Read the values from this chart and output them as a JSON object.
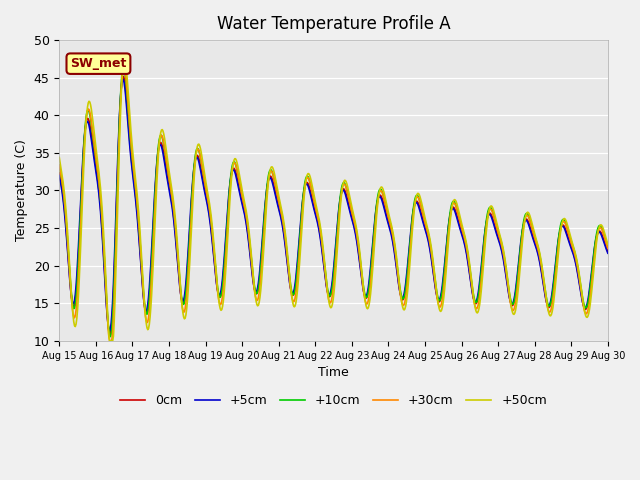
{
  "title": "Water Temperature Profile A",
  "xlabel": "Time",
  "ylabel": "Temperature (C)",
  "ylim": [
    10,
    50
  ],
  "xlim": [
    0,
    15
  ],
  "x_tick_positions": [
    0,
    1,
    2,
    3,
    4,
    5,
    6,
    7,
    8,
    9,
    10,
    11,
    12,
    13,
    14,
    15
  ],
  "x_tick_labels": [
    "Aug 15",
    "Aug 16",
    "Aug 17",
    "Aug 18",
    "Aug 19",
    "Aug 20",
    "Aug 21",
    "Aug 22",
    "Aug 23",
    "Aug 24",
    "Aug 25",
    "Aug 26",
    "Aug 27",
    "Aug 28",
    "Aug 29",
    "Aug 30"
  ],
  "y_ticks": [
    10,
    15,
    20,
    25,
    30,
    35,
    40,
    45,
    50
  ],
  "legend_labels": [
    "0cm",
    "+5cm",
    "+10cm",
    "+30cm",
    "+50cm"
  ],
  "legend_colors": [
    "#cc0000",
    "#0000cc",
    "#00cc00",
    "#ff8800",
    "#cccc00"
  ],
  "annotation_text": "SW_met",
  "fig_bg_color": "#f0f0f0",
  "ax_bg_color": "#e8e8e8",
  "grid_color": "#ffffff"
}
